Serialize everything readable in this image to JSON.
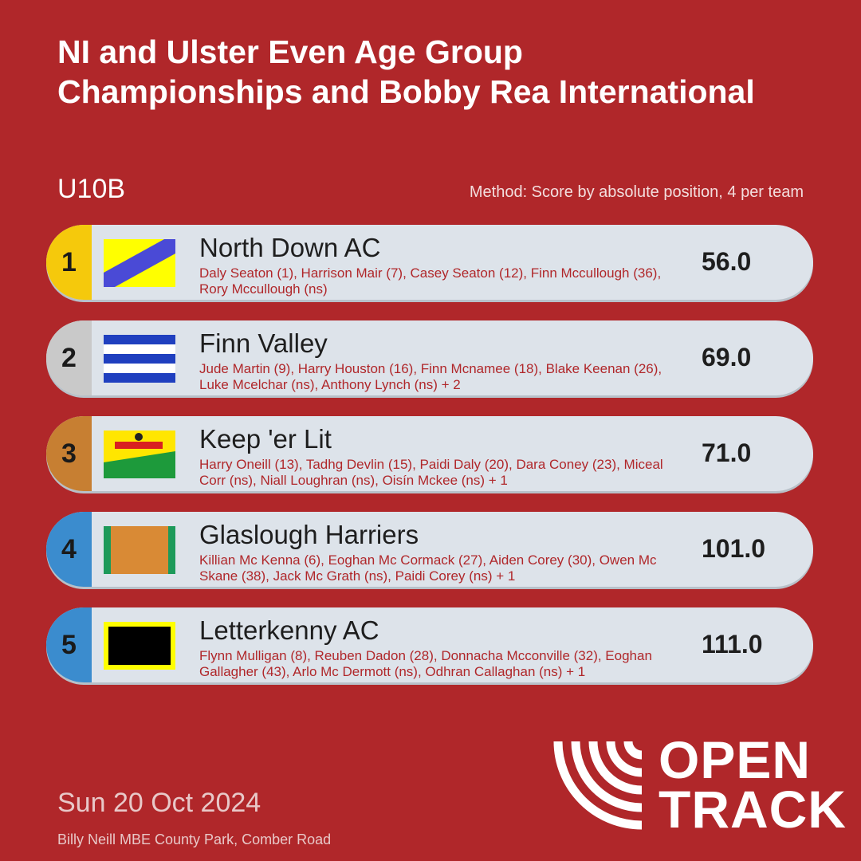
{
  "header": {
    "title_lines": [
      "NI and Ulster Even Age Group",
      "Championships and Bobby Rea International"
    ]
  },
  "event": {
    "name": "U10B",
    "method": "Method: Score by absolute position, 4 per team"
  },
  "teams": [
    {
      "rank": 1,
      "name": "North Down AC",
      "members": "Daly Seaton (1), Harrison Mair (7), Casey Seaton (12), Finn Mccullough (36), Rory Mccullough (ns)",
      "score": "56.0"
    },
    {
      "rank": 2,
      "name": "Finn Valley",
      "members": "Jude Martin (9), Harry Houston (16), Finn Mcnamee (18), Blake Keenan (26), Luke Mcelchar (ns), Anthony Lynch (ns) + 2",
      "score": "69.0"
    },
    {
      "rank": 3,
      "name": "Keep 'er Lit",
      "members": "Harry Oneill (13), Tadhg Devlin (15), Paidi Daly (20), Dara Coney (23), Miceal Corr (ns), Niall Loughran (ns), Oisín Mckee (ns) + 1",
      "score": "71.0"
    },
    {
      "rank": 4,
      "name": "Glaslough Harriers",
      "members": "Killian Mc Kenna (6), Eoghan Mc Cormack (27), Aiden Corey (30), Owen Mc Skane (38), Jack Mc Grath (ns), Paidi Corey (ns) + 1",
      "score": "101.0"
    },
    {
      "rank": 5,
      "name": "Letterkenny AC",
      "members": "Flynn Mulligan (8), Reuben Dadon (28), Donnacha Mcconville (32), Eoghan Gallagher (43), Arlo Mc Dermott (ns), Odhran Callaghan (ns) + 1",
      "score": "111.0"
    }
  ],
  "footer": {
    "date": "Sun 20 Oct 2024",
    "venue": "Billy Neill MBE County Park, Comber Road"
  },
  "logo": {
    "line1": "OPEN",
    "line2": "TRACK"
  }
}
